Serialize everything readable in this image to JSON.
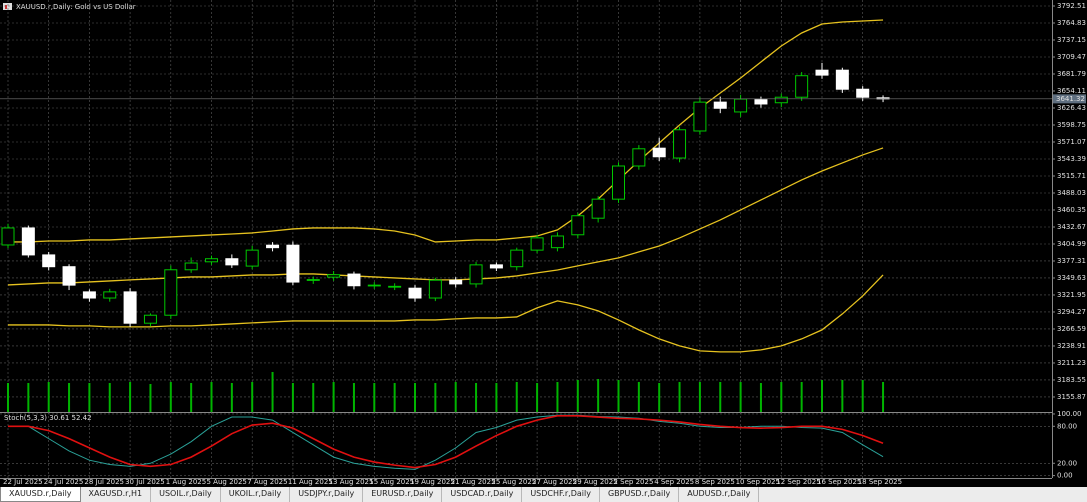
{
  "header": {
    "title": "XAUUSD.r,Daily: Gold vs US Dollar"
  },
  "tabs": [
    "XAUUSD.r,Daily",
    "XAGUSD.r,H1",
    "USOIL.r,Daily",
    "UKOIL.r,Daily",
    "USDJPY.r,Daily",
    "EURUSD.r,Daily",
    "USDCAD.r,Daily",
    "USDCHF.r,Daily",
    "GBPUSD.r,Daily",
    "AUDUSD.r,Daily"
  ],
  "chart_data": [
    {
      "type": "candlestick",
      "categories": [
        "22 Jul 2025",
        null,
        "24 Jul 2025",
        null,
        "28 Jul 2025",
        null,
        "30 Jul 2025",
        null,
        "1 Aug 2025",
        null,
        "5 Aug 2025",
        null,
        "7 Aug 2025",
        null,
        "11 Aug 2025",
        null,
        "13 Aug 2025",
        null,
        "15 Aug 2025",
        null,
        "19 Aug 2025",
        null,
        "21 Aug 2025",
        null,
        "25 Aug 2025",
        null,
        "27 Aug 2025",
        null,
        "29 Aug 2025",
        null,
        "2 Sep 2025",
        null,
        "4 Sep 2025",
        null,
        "8 Sep 2025",
        null,
        "10 Sep 2025",
        null,
        "12 Sep 2025",
        null,
        "16 Sep 2025",
        null,
        "18 Sep 2025",
        null
      ],
      "open": [
        3403.4,
        3431.1,
        3387.2,
        3368.0,
        3327.0,
        3317.0,
        3327.0,
        3276.0,
        3289.0,
        3363.0,
        3376.0,
        3381.0,
        3369.0,
        3403.0,
        3403.0,
        3346.0,
        3351.0,
        3356.0,
        3337.0,
        3335.0,
        3333.0,
        3317.0,
        3346.0,
        3340.0,
        3371.0,
        3368.0,
        3395.0,
        3399.0,
        3420.0,
        3447.0,
        3478.0,
        3532.0,
        3561.0,
        3545.0,
        3589.0,
        3636.0,
        3620.0,
        3640.0,
        3635.0,
        3644.0,
        3688.0,
        3688.0,
        3657.0,
        3643.0
      ],
      "high": [
        3438,
        3435,
        3392,
        3372,
        3331,
        3332,
        3333,
        3292,
        3370,
        3383,
        3386,
        3388,
        3402,
        3408,
        3409,
        3352,
        3361,
        3360,
        3343,
        3341,
        3338,
        3350,
        3351,
        3376,
        3375,
        3399,
        3420,
        3424,
        3456,
        3483,
        3538,
        3566,
        3578,
        3596,
        3644,
        3645,
        3648,
        3645,
        3650,
        3685,
        3700,
        3692,
        3662,
        3647
      ],
      "low": [
        3398,
        3383,
        3362,
        3330,
        3311,
        3311,
        3270,
        3271,
        3283,
        3358,
        3371,
        3366,
        3364,
        3393,
        3338,
        3340,
        3345,
        3331,
        3332,
        3330,
        3311,
        3312,
        3334,
        3334,
        3361,
        3362,
        3390,
        3393,
        3414,
        3440,
        3472,
        3526,
        3540,
        3538,
        3583,
        3618,
        3612,
        3627,
        3628,
        3638,
        3674,
        3651,
        3638,
        3636
      ],
      "close": [
        3431.1,
        3387.2,
        3368.0,
        3338.0,
        3317.0,
        3327.0,
        3276.0,
        3289.0,
        3363.0,
        3374.0,
        3381.0,
        3371.0,
        3395.0,
        3399.0,
        3343.0,
        3347.0,
        3355.0,
        3337.0,
        3338.0,
        3336.0,
        3317.0,
        3346.0,
        3340.0,
        3371.0,
        3366.0,
        3395.0,
        3415.0,
        3418.0,
        3451.0,
        3478.0,
        3532.0,
        3560.0,
        3547.0,
        3591.0,
        3636.0,
        3626.0,
        3641.0,
        3633.0,
        3644.0,
        3679.0,
        3680.0,
        3657.0,
        3644.0,
        3641.32
      ],
      "bull_color": "#00c800",
      "bear_color": "#ffffff",
      "current_price": 3641.32,
      "overlays": [
        {
          "color": "#e6c21f",
          "values": [
            3408.3,
            3408.3,
            3409.9,
            3409.9,
            3411.6,
            3411.6,
            3413.2,
            3414.8,
            3416.5,
            3418.1,
            3419.7,
            3421.3,
            3423.0,
            3426.2,
            3429.5,
            3431.1,
            3431.1,
            3431.1,
            3429.5,
            3426.2,
            3419.7,
            3408.3,
            3409.9,
            3411.6,
            3411.6,
            3414.8,
            3418.1,
            3427.9,
            3450.7,
            3478.3,
            3509.3,
            3540.2,
            3569.5,
            3598.8,
            3626.5,
            3650.9,
            3675.3,
            3701.4,
            3727.4,
            3748.6,
            3763.2,
            3766.5,
            3768.1,
            3769.7
          ]
        },
        {
          "color": "#e6c21f",
          "values": [
            3338.3,
            3339.9,
            3341.6,
            3341.6,
            3343.2,
            3344.8,
            3346.5,
            3348.1,
            3349.7,
            3351.3,
            3351.3,
            3353.0,
            3354.6,
            3354.6,
            3356.2,
            3356.2,
            3354.6,
            3353.0,
            3351.3,
            3349.7,
            3348.1,
            3346.5,
            3346.5,
            3348.1,
            3349.7,
            3353.0,
            3357.9,
            3362.7,
            3369.3,
            3375.8,
            3382.3,
            3392.1,
            3401.8,
            3414.8,
            3429.5,
            3444.1,
            3460.4,
            3476.7,
            3493.0,
            3509.3,
            3523.9,
            3537.0,
            3550.0,
            3561.4
          ]
        },
        {
          "color": "#e6c21f",
          "values": [
            3273.2,
            3273.2,
            3273.2,
            3271.6,
            3271.6,
            3270.0,
            3270.0,
            3270.0,
            3271.6,
            3271.6,
            3273.2,
            3274.8,
            3276.5,
            3278.1,
            3279.7,
            3279.7,
            3279.7,
            3279.7,
            3279.7,
            3279.7,
            3281.3,
            3281.3,
            3283.0,
            3284.6,
            3284.6,
            3286.2,
            3300.9,
            3312.3,
            3305.8,
            3296.0,
            3281.3,
            3265.1,
            3250.4,
            3239.0,
            3230.9,
            3229.3,
            3229.3,
            3232.5,
            3239.0,
            3250.4,
            3265.1,
            3291.1,
            3320.4,
            3354.6
          ]
        }
      ],
      "volume": [
        29,
        29,
        30,
        29,
        29,
        29,
        30,
        28,
        30,
        29,
        30,
        29,
        30,
        40,
        29,
        29,
        30,
        29,
        29,
        29,
        29,
        29,
        30,
        29,
        29,
        30,
        29,
        30,
        32,
        33,
        32,
        30,
        29,
        30,
        30,
        30,
        30,
        29,
        30,
        30,
        32,
        32,
        32,
        30
      ],
      "volume_color": "#00b400",
      "ylim": [
        3131.4,
        3802.3
      ],
      "yticks": [
        3792.51,
        3764.83,
        3737.15,
        3709.47,
        3681.79,
        3654.11,
        3626.43,
        3598.75,
        3571.07,
        3543.39,
        3515.71,
        3488.03,
        3460.35,
        3432.67,
        3404.99,
        3377.31,
        3349.63,
        3321.95,
        3294.27,
        3266.59,
        3238.91,
        3211.23,
        3183.55,
        3155.87
      ],
      "grid": true
    },
    {
      "type": "line",
      "title": "Stoch(5,3,3) 30.61 52.42",
      "series": [
        {
          "color": "#2aa198",
          "values": [
            80,
            80,
            60,
            40,
            25,
            18,
            15,
            20,
            35,
            55,
            80,
            95,
            95,
            90,
            70,
            50,
            30,
            20,
            15,
            12,
            10,
            25,
            45,
            70,
            78,
            90,
            95,
            98,
            98,
            96,
            95,
            93,
            88,
            85,
            80,
            78,
            78,
            80,
            80,
            78,
            77,
            70,
            50,
            30.61
          ]
        },
        {
          "color": "#e01010",
          "values": [
            80,
            80,
            73,
            60,
            45,
            30,
            18,
            15,
            18,
            30,
            48,
            68,
            82,
            85,
            77,
            60,
            43,
            30,
            22,
            17,
            13,
            18,
            30,
            48,
            65,
            80,
            90,
            97,
            97,
            95,
            93,
            92,
            90,
            87,
            83,
            80,
            78,
            77,
            78,
            80,
            80,
            75,
            65,
            52.42
          ]
        }
      ],
      "ylim": [
        -3.9,
        103.2
      ],
      "yticks": [
        {
          "value": 100,
          "label": "100.00"
        },
        {
          "value": 80,
          "label": "80.00"
        },
        {
          "value": 20,
          "label": "20.00"
        },
        {
          "value": 0,
          "label": "0.00"
        }
      ],
      "grid": true
    }
  ]
}
